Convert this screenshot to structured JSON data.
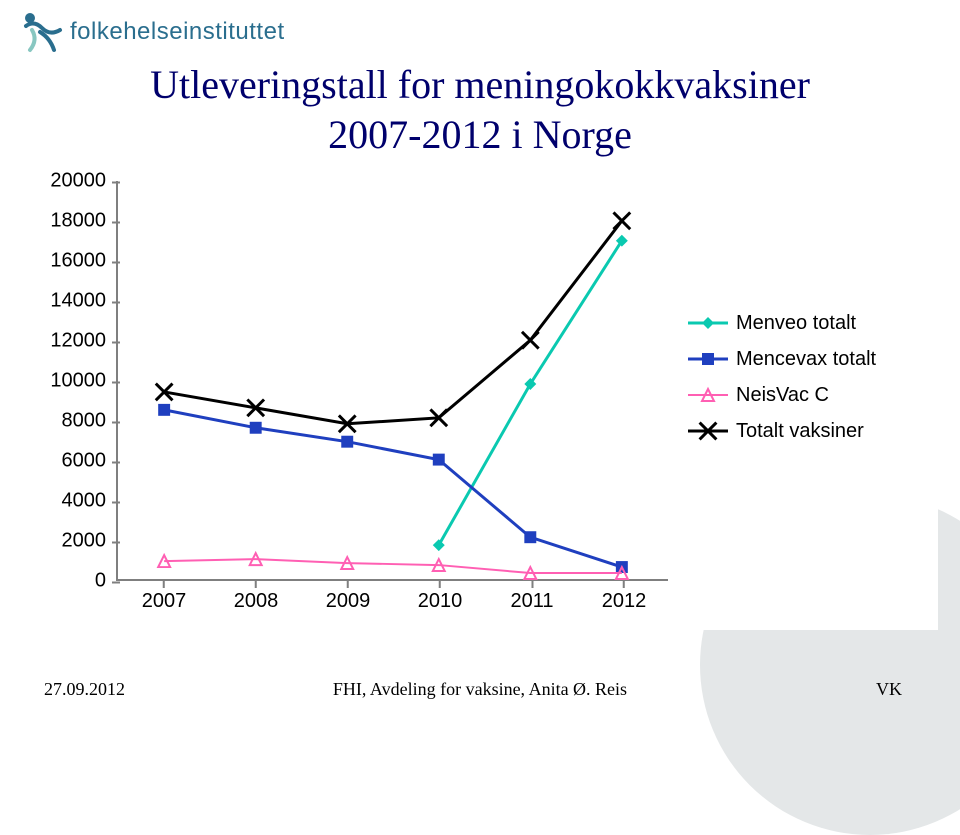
{
  "logo": {
    "text": "folkehelseinstituttet",
    "color": "#2a6e8e"
  },
  "title": {
    "line1": "Utleveringstall for meningokokkvaksiner",
    "line2": "2007-2012 i Norge",
    "color": "#00006c",
    "font_family": "Times New Roman",
    "fontsize": 40
  },
  "chart": {
    "type": "line",
    "background_color": "#ffffff",
    "axis_color": "#7f7f7f",
    "tick_font_size": 20,
    "tick_color": "#000000",
    "x": {
      "categories": [
        "2007",
        "2008",
        "2009",
        "2010",
        "2011",
        "2012"
      ]
    },
    "y": {
      "min": 0,
      "max": 20000,
      "step": 2000,
      "labels": [
        "0",
        "2000",
        "4000",
        "6000",
        "8000",
        "10000",
        "12000",
        "14000",
        "16000",
        "18000",
        "20000"
      ]
    },
    "series": [
      {
        "name": "Menveo totalt",
        "color": "#0ac9b0",
        "marker": "diamond",
        "line_width": 3,
        "values": [
          null,
          null,
          null,
          1700,
          9800,
          17000
        ]
      },
      {
        "name": "Mencevax totalt",
        "color": "#1f3fbf",
        "marker": "square",
        "line_width": 3,
        "values": [
          8500,
          7600,
          6900,
          6000,
          2100,
          600
        ]
      },
      {
        "name": "NeisVac C",
        "color": "#ff5fb3",
        "marker": "triangle",
        "line_width": 2,
        "values": [
          900,
          1000,
          800,
          700,
          300,
          300
        ]
      },
      {
        "name": "Totalt vaksiner",
        "color": "#000000",
        "marker": "x",
        "line_width": 3,
        "values": [
          9400,
          8600,
          7800,
          8100,
          12000,
          18000
        ]
      }
    ],
    "legend": {
      "fontsize": 20,
      "position": "right"
    }
  },
  "footer": {
    "date": "27.09.2012",
    "center": "FHI, Avdeling for vaksine, Anita Ø. Reis",
    "right": "VK",
    "font_family": "Times New Roman",
    "fontsize": 18
  },
  "background_decor": {
    "circle_colors": [
      "#e4e7e8",
      "#f0f2f3",
      "#e4e7e8"
    ]
  }
}
